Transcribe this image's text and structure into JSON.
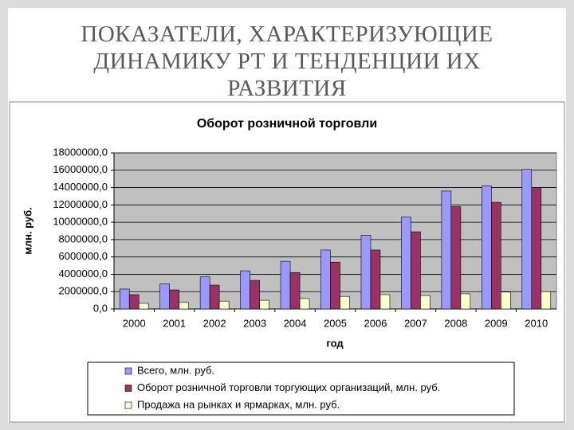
{
  "slide_title": "ПОКАЗАТЕЛИ, ХАРАКТЕРИЗУЮЩИЕ ДИНАМИКУ РТ И ТЕНДЕНЦИИ ИХ РАЗВИТИЯ",
  "chart_data": {
    "type": "bar",
    "title": "Оборот розничной торговли",
    "y_label": "млн. руб.",
    "x_label": "год",
    "categories": [
      "2000",
      "2001",
      "2002",
      "2003",
      "2004",
      "2005",
      "2006",
      "2007",
      "2008",
      "2009",
      "2010"
    ],
    "series": [
      {
        "name": "Всего, млн. руб.",
        "color": "#9999ff",
        "values": [
          2300000,
          2900000,
          3700000,
          4400000,
          5500000,
          6800000,
          8500000,
          10600000,
          13600000,
          14200000,
          16100000
        ]
      },
      {
        "name": "Оборот розничной торговли торгующих организаций, млн. руб.",
        "color": "#993366",
        "values": [
          1650000,
          2200000,
          2750000,
          3300000,
          4200000,
          5400000,
          6800000,
          8900000,
          11800000,
          12300000,
          14000000
        ]
      },
      {
        "name": "Продажа на рынках и ярмарках, млн. руб.",
        "color": "#ffffcc",
        "values": [
          650000,
          750000,
          900000,
          1000000,
          1200000,
          1450000,
          1650000,
          1550000,
          1750000,
          1950000,
          2000000
        ]
      }
    ],
    "ylim": [
      0,
      18000000
    ],
    "yticks": [
      {
        "value": 0,
        "label": "0,0"
      },
      {
        "value": 2000000,
        "label": "2000000,0"
      },
      {
        "value": 4000000,
        "label": "4000000,0"
      },
      {
        "value": 6000000,
        "label": "6000000,0"
      },
      {
        "value": 8000000,
        "label": "8000000,0"
      },
      {
        "value": 10000000,
        "label": "10000000,0"
      },
      {
        "value": 12000000,
        "label": "12000000,0"
      },
      {
        "value": 14000000,
        "label": "14000000,0"
      },
      {
        "value": 16000000,
        "label": "16000000,0"
      },
      {
        "value": 18000000,
        "label": "18000000,0"
      }
    ],
    "grid": true,
    "plot_background": "#c0c0c0",
    "legend": "bottom"
  }
}
